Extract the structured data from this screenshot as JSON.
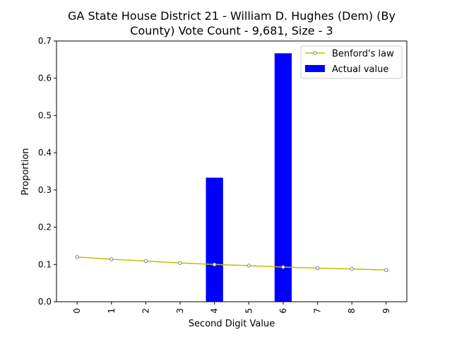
{
  "chart_data": {
    "type": "bar",
    "title_lines": [
      "GA State House District 21 - William D. Hughes (Dem) (By",
      "County) Vote Count - 9,681, Size - 3"
    ],
    "xlabel": "Second Digit Value",
    "ylabel": "Proportion",
    "categories": [
      "0",
      "1",
      "2",
      "3",
      "4",
      "5",
      "6",
      "7",
      "8",
      "9"
    ],
    "ylim": [
      0,
      0.7
    ],
    "yticks": [
      "0.0",
      "0.1",
      "0.2",
      "0.3",
      "0.4",
      "0.5",
      "0.6",
      "0.7"
    ],
    "grid": false,
    "legend_position": "top-right",
    "series": [
      {
        "name": "Benford's law",
        "kind": "line",
        "color": "#bfbf00",
        "marker_color": "#808080",
        "values": [
          0.12,
          0.114,
          0.109,
          0.104,
          0.1,
          0.097,
          0.093,
          0.09,
          0.088,
          0.085
        ]
      },
      {
        "name": "Actual value",
        "kind": "bar",
        "color": "#0000ff",
        "values": [
          0,
          0,
          0,
          0,
          0.333,
          0,
          0.667,
          0,
          0,
          0
        ]
      }
    ]
  }
}
